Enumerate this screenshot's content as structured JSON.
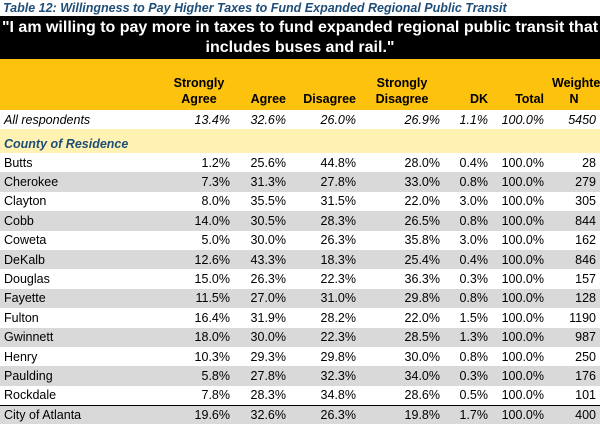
{
  "caption": "Table 12: Willingness to Pay Higher Taxes to Fund Expanded Regional Public Transit",
  "banner": {
    "line1": "\"I am willing to pay more in taxes to fund expanded regional public transit that",
    "line2": "includes buses and rail.\""
  },
  "headers": {
    "strongly_agree": [
      "Strongly",
      "Agree"
    ],
    "agree": "Agree",
    "disagree": "Disagree",
    "strongly_disagree": [
      "Strongly",
      "Disagree"
    ],
    "dk": "DK",
    "total": "Total",
    "weighted_n": [
      "Weighted",
      "N"
    ]
  },
  "all_respondents": {
    "label": "All respondents",
    "values": [
      "13.4%",
      "32.6%",
      "26.0%",
      "26.9%",
      "1.1%",
      "100.0%",
      "5450"
    ]
  },
  "section_label": "County of Residence",
  "counties": [
    {
      "name": "Butts",
      "values": [
        "1.2%",
        "25.6%",
        "44.8%",
        "28.0%",
        "0.4%",
        "100.0%",
        "28"
      ]
    },
    {
      "name": "Cherokee",
      "values": [
        "7.3%",
        "31.3%",
        "27.8%",
        "33.0%",
        "0.8%",
        "100.0%",
        "279"
      ]
    },
    {
      "name": "Clayton",
      "values": [
        "8.0%",
        "35.5%",
        "31.5%",
        "22.0%",
        "3.0%",
        "100.0%",
        "305"
      ]
    },
    {
      "name": "Cobb",
      "values": [
        "14.0%",
        "30.5%",
        "28.3%",
        "26.5%",
        "0.8%",
        "100.0%",
        "844"
      ]
    },
    {
      "name": "Coweta",
      "values": [
        "5.0%",
        "30.0%",
        "26.3%",
        "35.8%",
        "3.0%",
        "100.0%",
        "162"
      ]
    },
    {
      "name": "DeKalb",
      "values": [
        "12.6%",
        "43.3%",
        "18.3%",
        "25.4%",
        "0.4%",
        "100.0%",
        "846"
      ]
    },
    {
      "name": "Douglas",
      "values": [
        "15.0%",
        "26.3%",
        "22.3%",
        "36.3%",
        "0.3%",
        "100.0%",
        "157"
      ]
    },
    {
      "name": "Fayette",
      "values": [
        "11.5%",
        "27.0%",
        "31.0%",
        "29.8%",
        "0.8%",
        "100.0%",
        "128"
      ]
    },
    {
      "name": "Fulton",
      "values": [
        "16.4%",
        "31.9%",
        "28.2%",
        "22.0%",
        "1.5%",
        "100.0%",
        "1190"
      ]
    },
    {
      "name": "Gwinnett",
      "values": [
        "18.0%",
        "30.0%",
        "22.3%",
        "28.5%",
        "1.3%",
        "100.0%",
        "987"
      ]
    },
    {
      "name": "Henry",
      "values": [
        "10.3%",
        "29.3%",
        "29.8%",
        "30.0%",
        "0.8%",
        "100.0%",
        "250"
      ]
    },
    {
      "name": "Paulding",
      "values": [
        "5.8%",
        "27.8%",
        "32.3%",
        "34.0%",
        "0.3%",
        "100.0%",
        "176"
      ]
    },
    {
      "name": "Rockdale",
      "values": [
        "7.8%",
        "28.3%",
        "34.8%",
        "28.6%",
        "0.5%",
        "100.0%",
        "101"
      ]
    },
    {
      "name": "City of Atlanta",
      "values": [
        "19.6%",
        "32.6%",
        "26.3%",
        "19.8%",
        "1.7%",
        "100.0%",
        "400"
      ]
    }
  ]
}
